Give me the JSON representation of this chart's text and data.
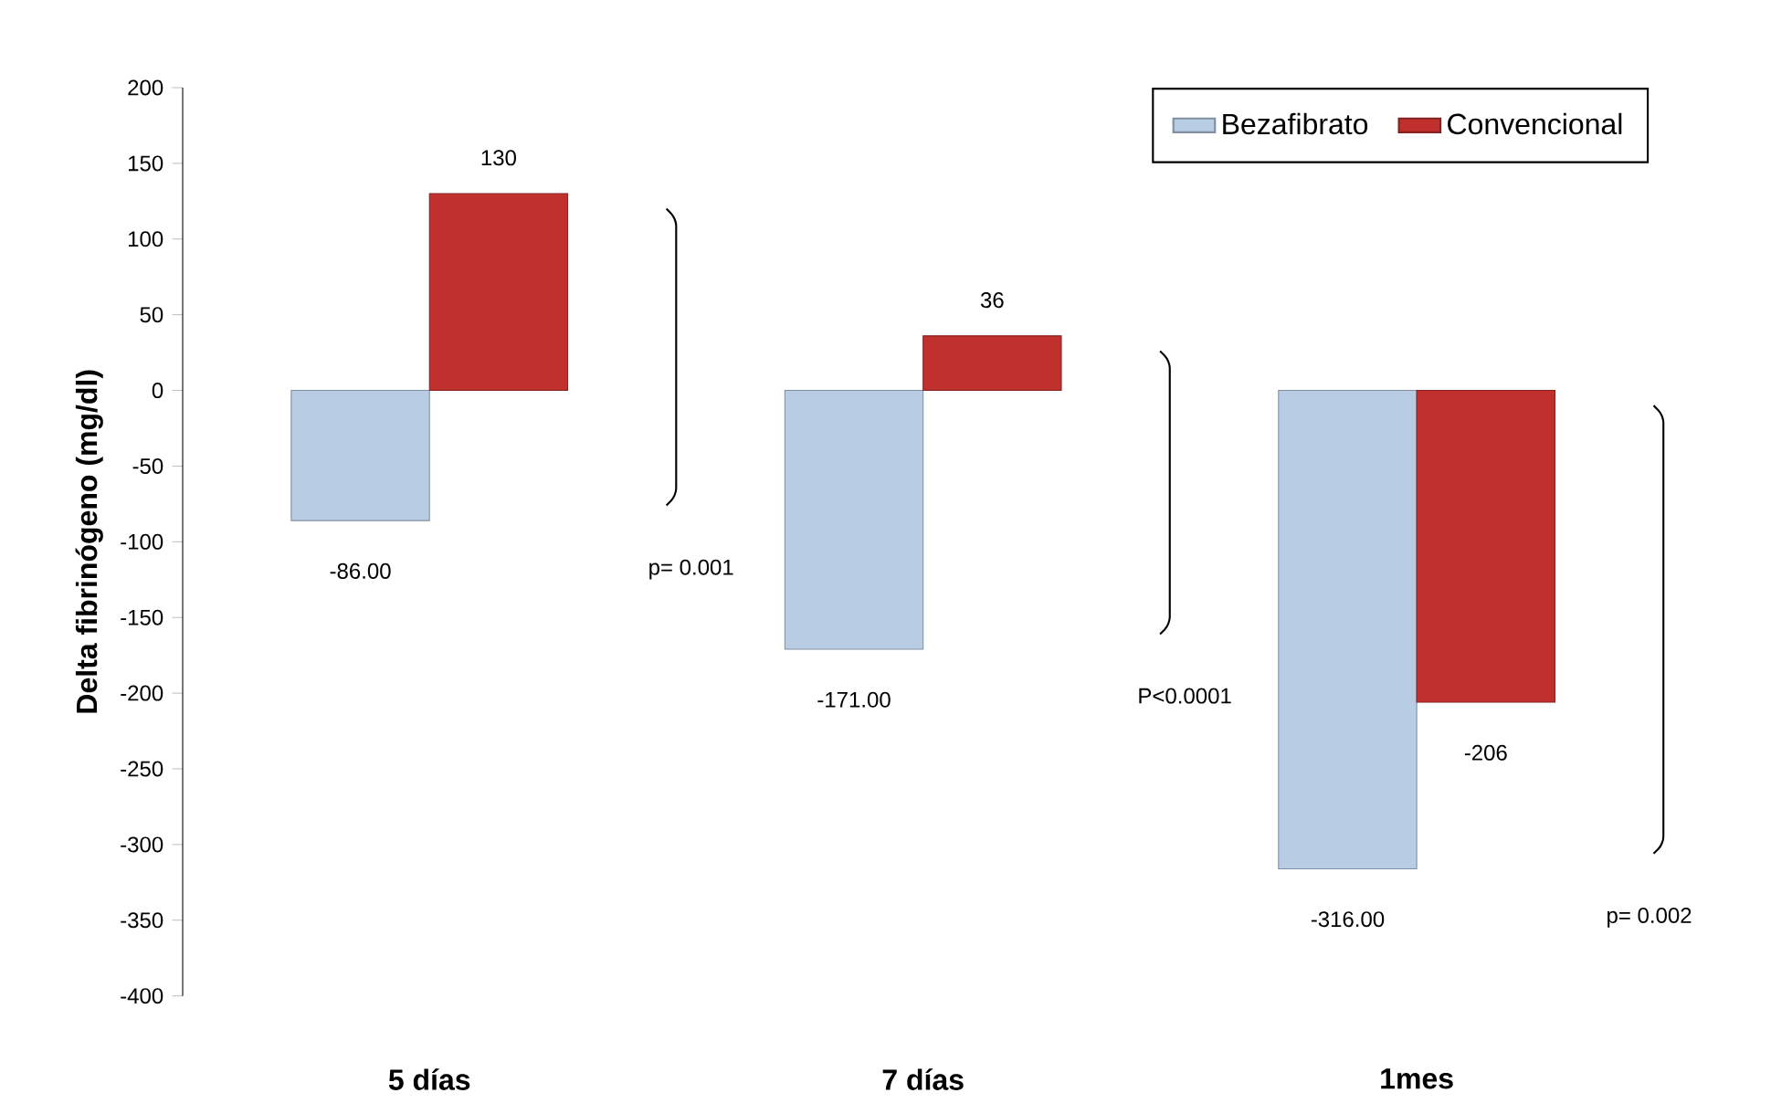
{
  "chart_data": {
    "type": "bar",
    "ylabel": "Delta fibrinógeno (mg/dl)",
    "categories": [
      "5 días",
      "7 días",
      "1mes"
    ],
    "series": [
      {
        "name": "Bezafibrato",
        "color": "#b8cce4",
        "values": [
          -86,
          -171,
          -316
        ],
        "value_labels": [
          "-86.00",
          "-171.00",
          "-316.00"
        ]
      },
      {
        "name": "Convencional",
        "color": "#c0312e",
        "values": [
          130,
          36,
          -206
        ],
        "value_labels": [
          "130",
          "36",
          "-206"
        ]
      }
    ],
    "ylim": [
      -400,
      200
    ],
    "yticks": [
      -400,
      -350,
      -300,
      -250,
      -200,
      -150,
      -100,
      -50,
      0,
      50,
      100,
      150,
      200
    ],
    "annotations": [
      "p= 0.001",
      "P<0.0001",
      "p= 0.002"
    ],
    "legend": "top right",
    "grid": false
  }
}
